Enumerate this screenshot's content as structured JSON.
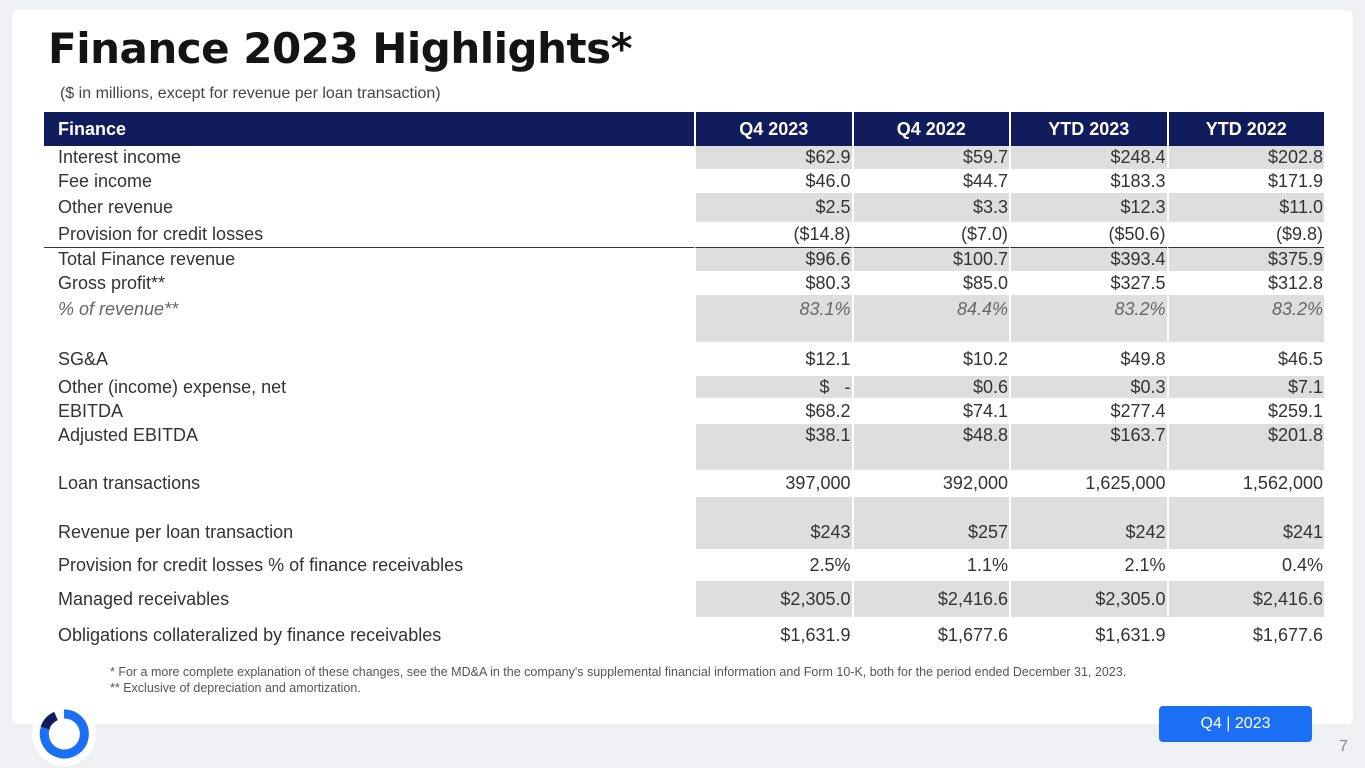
{
  "title": "Finance 2023 Highlights*",
  "subtitle": "($ in millions, except for revenue per loan transaction)",
  "table": {
    "headers": [
      "Finance",
      "Q4 2023",
      "Q4 2022",
      "YTD 2023",
      "YTD 2022"
    ],
    "rows": [
      {
        "label": "Interest income",
        "values": [
          "$62.9",
          "$59.7",
          "$248.4",
          "$202.8"
        ]
      },
      {
        "label": "Fee income",
        "values": [
          "$46.0",
          "$44.7",
          "$183.3",
          "$171.9"
        ]
      },
      {
        "label": "Other revenue",
        "values": [
          "$2.5",
          "$3.3",
          "$12.3",
          "$11.0"
        ]
      },
      {
        "label": "Provision for credit losses",
        "values": [
          "($14.8)",
          "($7.0)",
          "($50.6)",
          "($9.8)"
        ]
      },
      {
        "label": "Total Finance revenue",
        "values": [
          "$96.6",
          "$100.7",
          "$393.4",
          "$375.9"
        ]
      },
      {
        "label": "Gross profit**",
        "values": [
          "$80.3",
          "$85.0",
          "$327.5",
          "$312.8"
        ]
      },
      {
        "label": "% of revenue**",
        "values": [
          "83.1%",
          "84.4%",
          "83.2%",
          "83.2%"
        ]
      },
      {
        "label": "",
        "values": [
          "",
          "",
          "",
          ""
        ]
      },
      {
        "label": "SG&A",
        "values": [
          "$12.1",
          "$10.2",
          "$49.8",
          "$46.5"
        ]
      },
      {
        "label": "Other (income) expense, net",
        "values": [
          "$   -",
          "$0.6",
          "$0.3",
          "$7.1"
        ]
      },
      {
        "label": "EBITDA",
        "values": [
          "$68.2",
          "$74.1",
          "$277.4",
          "$259.1"
        ]
      },
      {
        "label": "Adjusted EBITDA",
        "values": [
          "$38.1",
          "$48.8",
          "$163.7",
          "$201.8"
        ]
      },
      {
        "label": "",
        "values": [
          "",
          "",
          "",
          ""
        ]
      },
      {
        "label": "Loan transactions",
        "values": [
          "397,000",
          "392,000",
          "1,625,000",
          "1,562,000"
        ]
      },
      {
        "label": "",
        "values": [
          "",
          "",
          "",
          ""
        ]
      },
      {
        "label": "Revenue per loan transaction",
        "values": [
          "$243",
          "$257",
          "$242",
          "$241"
        ]
      },
      {
        "label": "Provision for credit losses % of finance receivables",
        "values": [
          "2.5%",
          "1.1%",
          "2.1%",
          "0.4%"
        ]
      },
      {
        "label": "Managed receivables",
        "values": [
          "$2,305.0",
          "$2,416.6",
          "$2,305.0",
          "$2,416.6"
        ]
      },
      {
        "label": "Obligations collateralized by finance receivables",
        "values": [
          "$1,631.9",
          "$1,677.6",
          "$1,631.9",
          "$1,677.6"
        ]
      }
    ]
  },
  "footnotes": [
    "* For a more complete explanation of these changes, see the MD&A in the company's supplemental financial information and Form 10-K, both for the period ended December 31, 2023.",
    "** Exclusive of depreciation and amortization."
  ],
  "badge": "Q4 | 2023",
  "page_number": "7",
  "colors": {
    "header_bg": "#111c5c",
    "shade": "#dedede",
    "badge": "#1b6ff5",
    "logo": "#1b6ff5"
  }
}
